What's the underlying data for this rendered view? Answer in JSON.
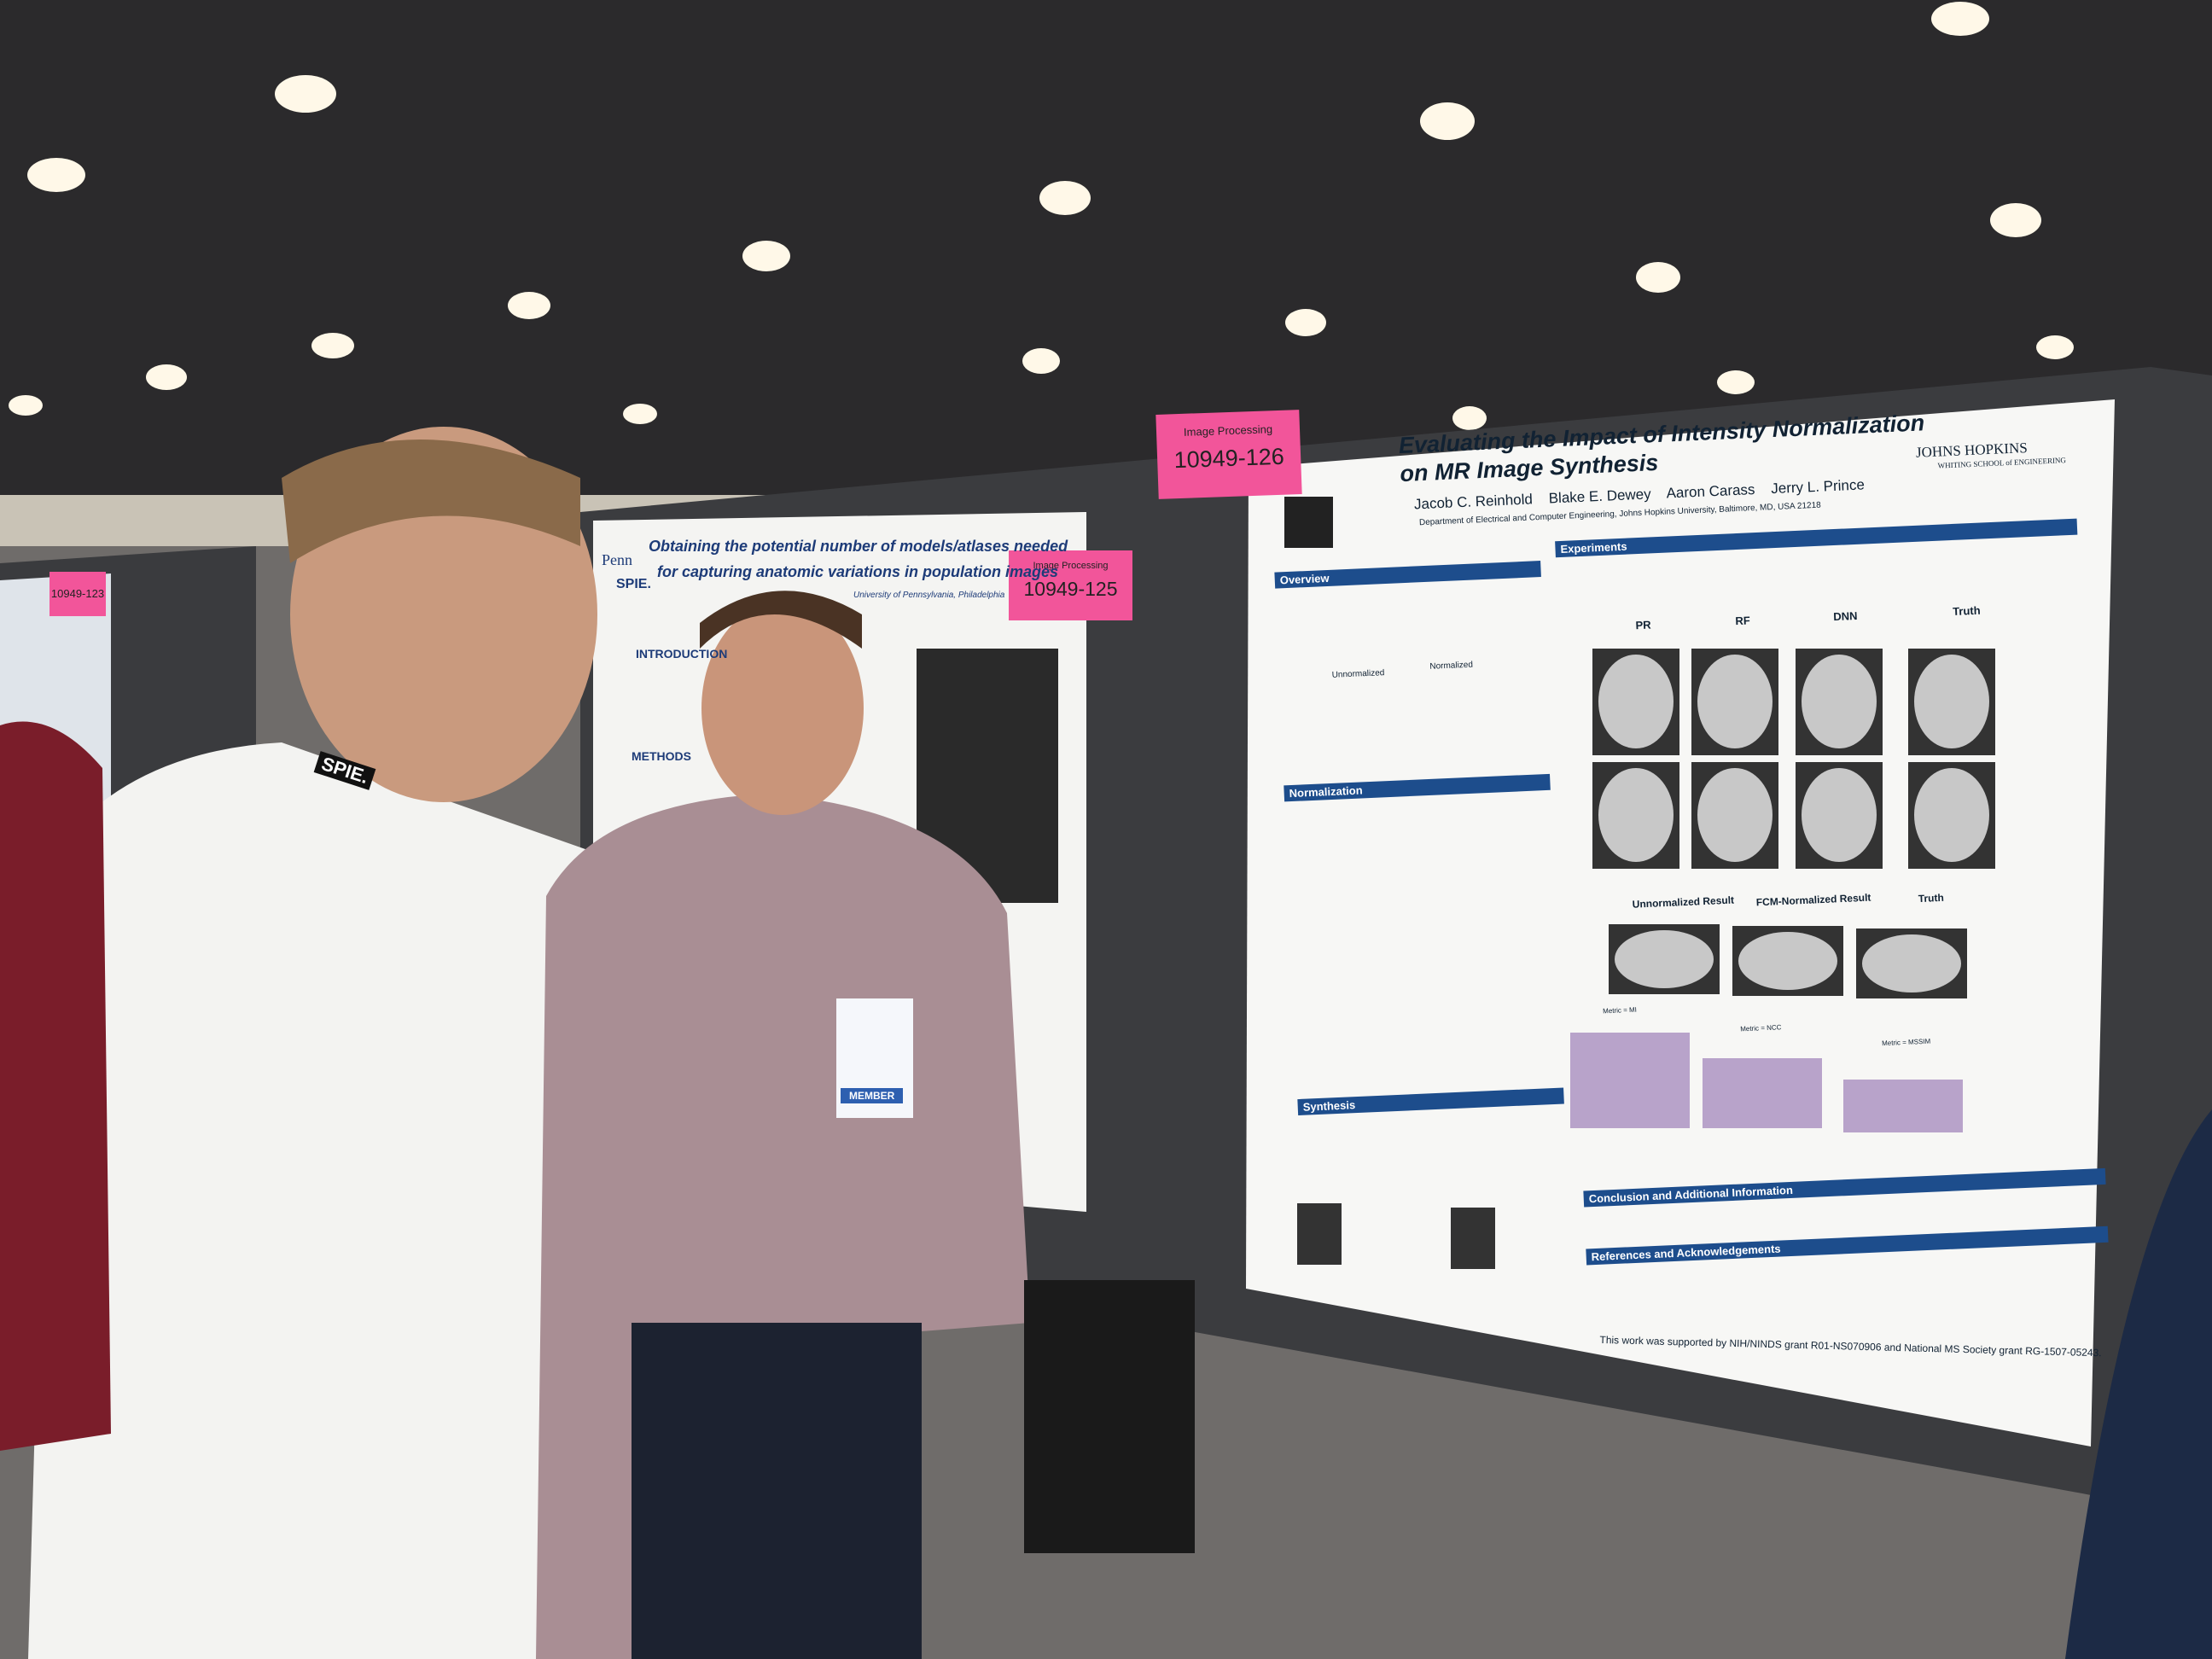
{
  "signs": [
    {
      "category": "Image Processing",
      "number": "10949-126"
    },
    {
      "category": "Image Processing",
      "number": "10949-125"
    },
    {
      "number": "10949-123"
    }
  ],
  "main_poster": {
    "title_lines": [
      "Evaluating the Impact of Intensity Normalization",
      "on MR Image Synthesis"
    ],
    "authors": [
      "Jacob C. Reinhold",
      "Blake E. Dewey",
      "Aaron Carass",
      "Jerry L. Prince"
    ],
    "affiliation": "Department of Electrical and Computer Engineering, Johns Hopkins University, Baltimore, MD, USA 21218",
    "logo": [
      "JOHNS HOPKINS",
      "WHITING SCHOOL of ENGINEERING"
    ],
    "sections": {
      "overview": "Overview",
      "experiments": "Experiments",
      "normalization": "Normalization",
      "synthesis": "Synthesis",
      "conclusion": "Conclusion and Additional Information",
      "references": "References and Acknowledgements"
    },
    "image_labels": [
      "PR",
      "RF",
      "DNN",
      "Truth"
    ],
    "sagittal_labels": [
      "Unnormalized Result",
      "FCM-Normalized Result",
      "Truth"
    ],
    "histogram_labels": [
      "Unnormalized",
      "Normalized"
    ],
    "metric_labels": [
      "Metric = MI",
      "Metric = NCC",
      "Metric = MSSIM"
    ],
    "funding": "This work was supported by NIH/NINDS grant R01-NS070906 and National MS Society grant RG-1507-05243."
  },
  "second_poster": {
    "title_lines": [
      "Obtaining the potential number of models/atlases needed",
      "for capturing anatomic variations in population images"
    ],
    "logos": [
      "Penn",
      "SPIE."
    ],
    "affiliation": "University of Pennsylvania, Philadelphia",
    "sections": [
      "INTRODUCTION",
      "METHODS"
    ]
  },
  "lanyard": "SPIE.",
  "badge": "MEMBER"
}
